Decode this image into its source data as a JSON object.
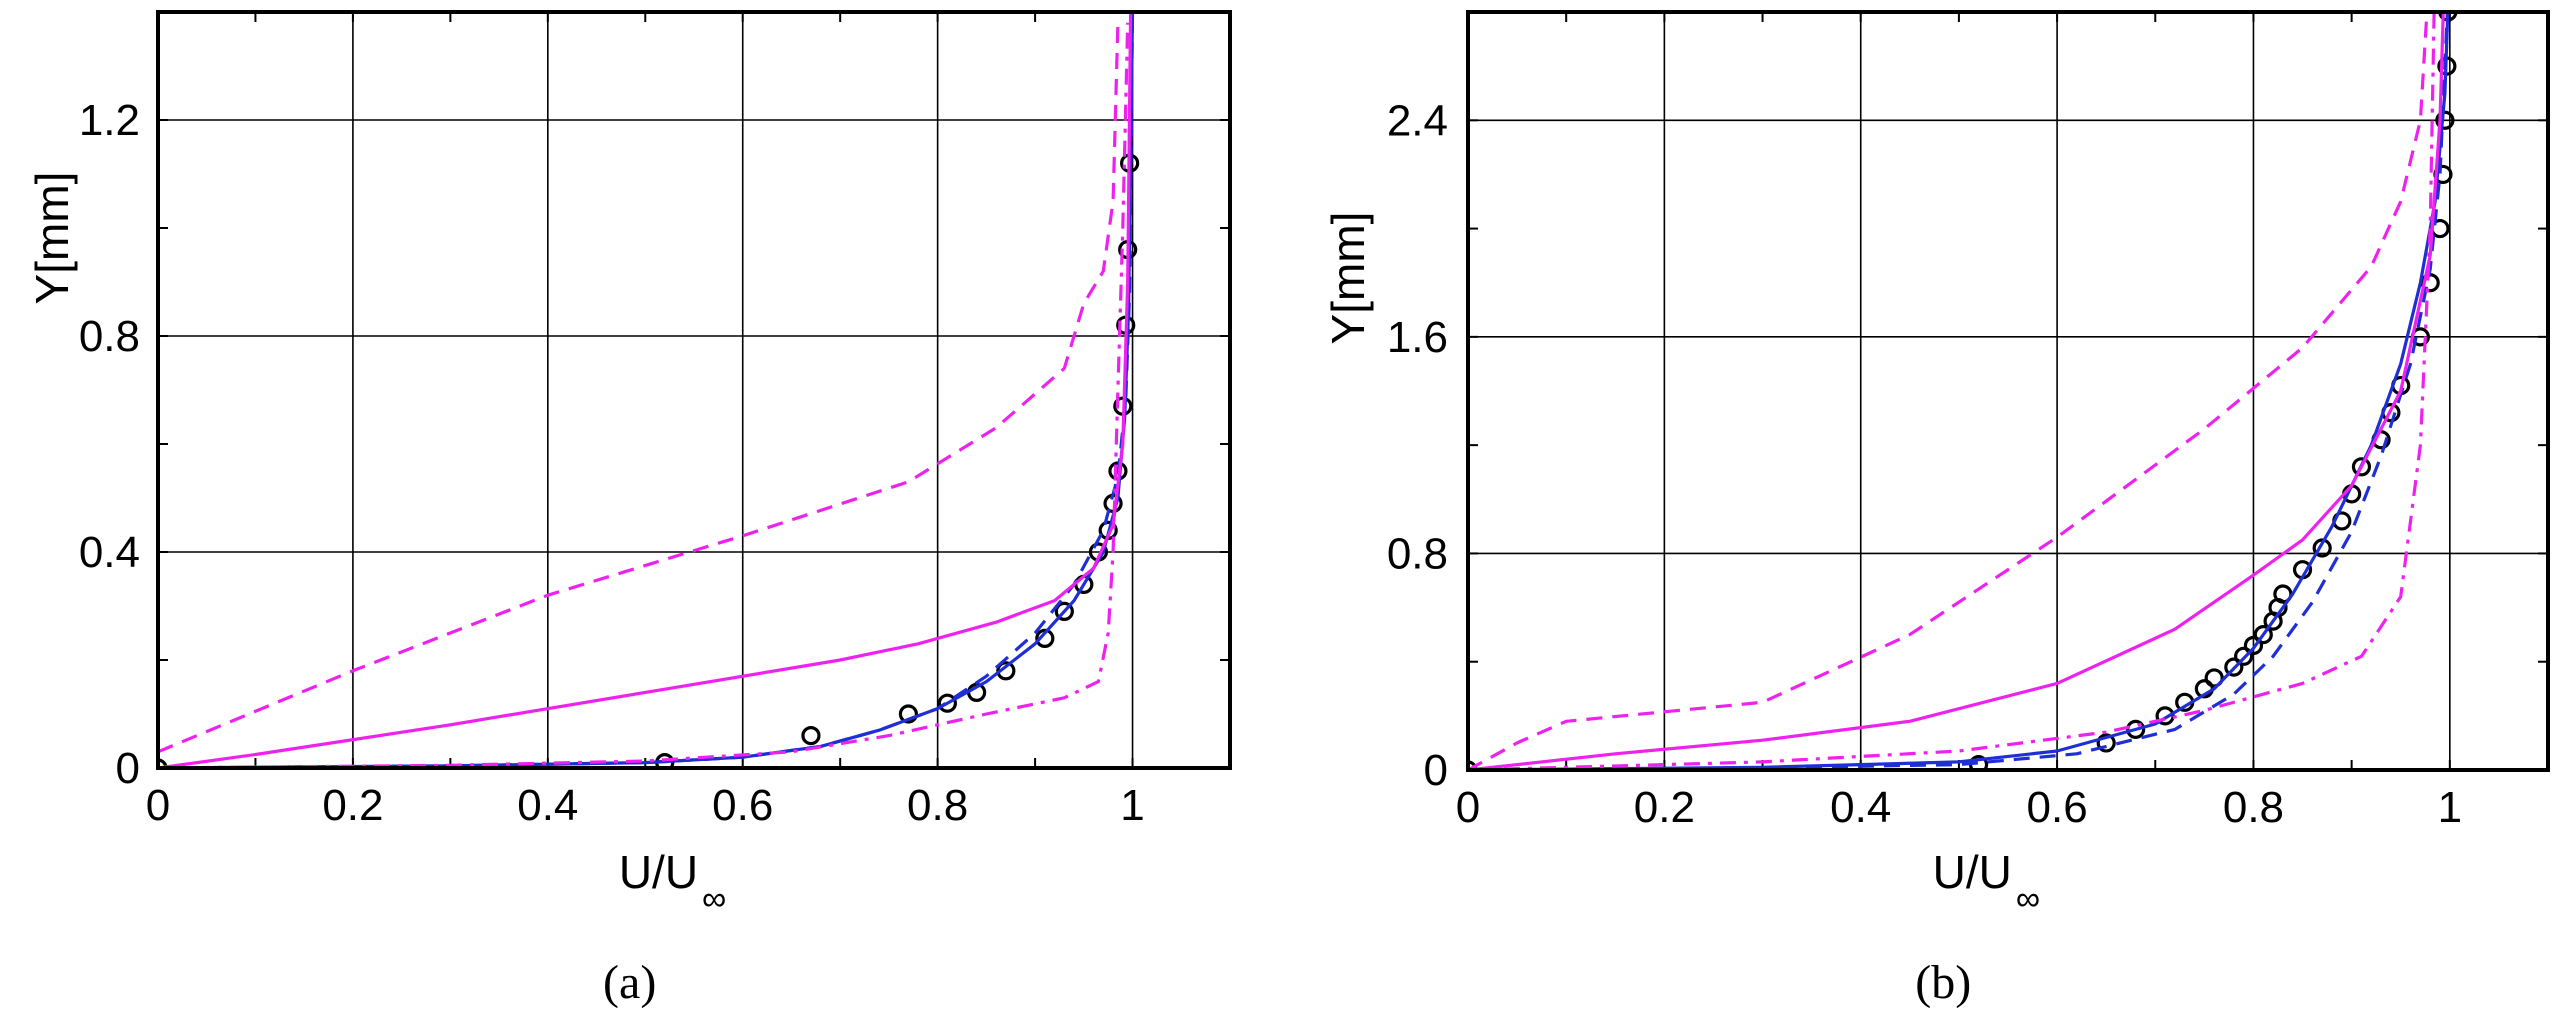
{
  "chart_data": [
    {
      "panel": "a",
      "caption": "(a)",
      "type": "line",
      "xlabel": "U/U",
      "xlabel_sub": "∞",
      "ylabel": "Y[mm]",
      "xlim": [
        0,
        1.1
      ],
      "ylim": [
        0,
        1.4
      ],
      "xticks": [
        0,
        0.2,
        0.4,
        0.6,
        0.8,
        1
      ],
      "xtick_labels": [
        "0",
        "0.2",
        "0.4",
        "0.6",
        "0.8",
        "1"
      ],
      "yticks": [
        0,
        0.4,
        0.8,
        1.2
      ],
      "ytick_labels": [
        "0",
        "0.4",
        "0.8",
        "1.2"
      ],
      "grid": true,
      "series": [
        {
          "style": "markers",
          "color": "#000000",
          "x": [
            0,
            0.52,
            0.67,
            0.77,
            0.81,
            0.84,
            0.87,
            0.91,
            0.93,
            0.95,
            0.965,
            0.975,
            0.98,
            0.985,
            0.99,
            0.993,
            0.995,
            0.997
          ],
          "y": [
            0,
            0.01,
            0.06,
            0.1,
            0.12,
            0.14,
            0.18,
            0.24,
            0.29,
            0.34,
            0.4,
            0.44,
            0.49,
            0.55,
            0.67,
            0.82,
            0.96,
            1.12
          ]
        },
        {
          "style": "solid",
          "color": "#1f2fd6",
          "x": [
            0,
            0.3,
            0.5,
            0.6,
            0.68,
            0.74,
            0.8,
            0.85,
            0.9,
            0.94,
            0.97,
            0.985,
            0.992,
            0.996,
            1.0
          ],
          "y": [
            0,
            0.004,
            0.01,
            0.02,
            0.04,
            0.07,
            0.11,
            0.16,
            0.23,
            0.31,
            0.4,
            0.5,
            0.65,
            0.85,
            1.4
          ]
        },
        {
          "style": "dashed",
          "color": "#1f2fd6",
          "x": [
            0,
            0.3,
            0.5,
            0.6,
            0.68,
            0.74,
            0.8,
            0.85,
            0.9,
            0.94,
            0.97,
            0.985,
            0.993,
            0.997,
            1.0
          ],
          "y": [
            0,
            0.004,
            0.01,
            0.02,
            0.04,
            0.07,
            0.11,
            0.17,
            0.25,
            0.34,
            0.44,
            0.54,
            0.68,
            0.88,
            1.4
          ]
        },
        {
          "style": "solid",
          "color": "#ee22ee",
          "x": [
            0,
            0.1,
            0.3,
            0.5,
            0.7,
            0.78,
            0.86,
            0.92,
            0.96,
            0.98,
            0.99,
            0.995,
            0.998
          ],
          "y": [
            0,
            0.025,
            0.08,
            0.14,
            0.2,
            0.23,
            0.27,
            0.31,
            0.37,
            0.45,
            0.6,
            0.9,
            1.4
          ]
        },
        {
          "style": "dashed",
          "color": "#ee22ee",
          "x": [
            0,
            0.2,
            0.4,
            0.6,
            0.77,
            0.86,
            0.93,
            0.95,
            0.97,
            0.98,
            0.985
          ],
          "y": [
            0.03,
            0.18,
            0.32,
            0.43,
            0.53,
            0.63,
            0.74,
            0.86,
            0.92,
            1.05,
            1.38
          ]
        },
        {
          "style": "dashdot",
          "color": "#ee22ee",
          "x": [
            0,
            0.3,
            0.5,
            0.65,
            0.75,
            0.85,
            0.93,
            0.965,
            0.975,
            0.98,
            0.985,
            0.99,
            0.995
          ],
          "y": [
            0,
            0.005,
            0.013,
            0.03,
            0.06,
            0.1,
            0.13,
            0.16,
            0.25,
            0.4,
            0.7,
            1.0,
            1.38
          ]
        }
      ]
    },
    {
      "panel": "b",
      "caption": "(b)",
      "type": "line",
      "xlabel": "U/U",
      "xlabel_sub": "∞",
      "ylabel": "Y[mm]",
      "xlim": [
        0,
        1.1
      ],
      "ylim": [
        0,
        2.8
      ],
      "xticks": [
        0,
        0.2,
        0.4,
        0.6,
        0.8,
        1
      ],
      "xtick_labels": [
        "0",
        "0.2",
        "0.4",
        "0.6",
        "0.8",
        "1"
      ],
      "yticks": [
        0,
        0.8,
        1.6,
        2.4
      ],
      "ytick_labels": [
        "0",
        "0.8",
        "1.6",
        "2.4"
      ],
      "grid": true,
      "series": [
        {
          "style": "markers",
          "color": "#000000",
          "x": [
            0,
            0.52,
            0.65,
            0.68,
            0.71,
            0.73,
            0.75,
            0.76,
            0.78,
            0.79,
            0.8,
            0.81,
            0.82,
            0.825,
            0.83,
            0.85,
            0.87,
            0.89,
            0.9,
            0.91,
            0.93,
            0.94,
            0.95,
            0.97,
            0.98,
            0.99,
            0.993,
            0.995,
            0.997,
            0.998,
            0.999
          ],
          "y": [
            0,
            0.02,
            0.1,
            0.15,
            0.2,
            0.25,
            0.3,
            0.34,
            0.38,
            0.42,
            0.46,
            0.5,
            0.55,
            0.6,
            0.65,
            0.74,
            0.82,
            0.92,
            1.02,
            1.12,
            1.22,
            1.32,
            1.42,
            1.6,
            1.8,
            2.0,
            2.2,
            2.4,
            2.6,
            2.8,
            2.98
          ]
        },
        {
          "style": "solid",
          "color": "#1f2fd6",
          "x": [
            0,
            0.3,
            0.5,
            0.6,
            0.7,
            0.76,
            0.8,
            0.84,
            0.88,
            0.92,
            0.95,
            0.97,
            0.985,
            0.995,
            1.0
          ],
          "y": [
            0,
            0.01,
            0.03,
            0.07,
            0.17,
            0.3,
            0.45,
            0.65,
            0.9,
            1.2,
            1.5,
            1.8,
            2.1,
            2.5,
            3.0
          ]
        },
        {
          "style": "dashed",
          "color": "#1f2fd6",
          "x": [
            0,
            0.3,
            0.5,
            0.62,
            0.72,
            0.78,
            0.82,
            0.86,
            0.9,
            0.93,
            0.96,
            0.98,
            0.99,
            1.0
          ],
          "y": [
            0,
            0.008,
            0.02,
            0.06,
            0.15,
            0.28,
            0.42,
            0.62,
            0.88,
            1.16,
            1.5,
            1.85,
            2.2,
            3.0
          ]
        },
        {
          "style": "solid",
          "color": "#ee22ee",
          "x": [
            0,
            0.15,
            0.3,
            0.45,
            0.6,
            0.72,
            0.8,
            0.85,
            0.9,
            0.95,
            0.98,
            0.99,
            0.995
          ],
          "y": [
            0,
            0.06,
            0.11,
            0.18,
            0.32,
            0.52,
            0.72,
            0.85,
            1.05,
            1.4,
            1.9,
            2.4,
            3.0
          ]
        },
        {
          "style": "dashed",
          "color": "#ee22ee",
          "x": [
            0,
            0.05,
            0.1,
            0.3,
            0.45,
            0.6,
            0.75,
            0.85,
            0.92,
            0.95,
            0.97,
            0.98
          ],
          "y": [
            0,
            0.1,
            0.18,
            0.25,
            0.5,
            0.86,
            1.26,
            1.56,
            1.86,
            2.1,
            2.4,
            3.0
          ]
        },
        {
          "style": "dashdot",
          "color": "#ee22ee",
          "x": [
            0,
            0.3,
            0.5,
            0.65,
            0.75,
            0.85,
            0.91,
            0.95,
            0.97,
            0.98,
            0.985
          ],
          "y": [
            0,
            0.03,
            0.07,
            0.14,
            0.22,
            0.32,
            0.42,
            0.64,
            1.2,
            2.0,
            3.0
          ]
        }
      ]
    }
  ]
}
